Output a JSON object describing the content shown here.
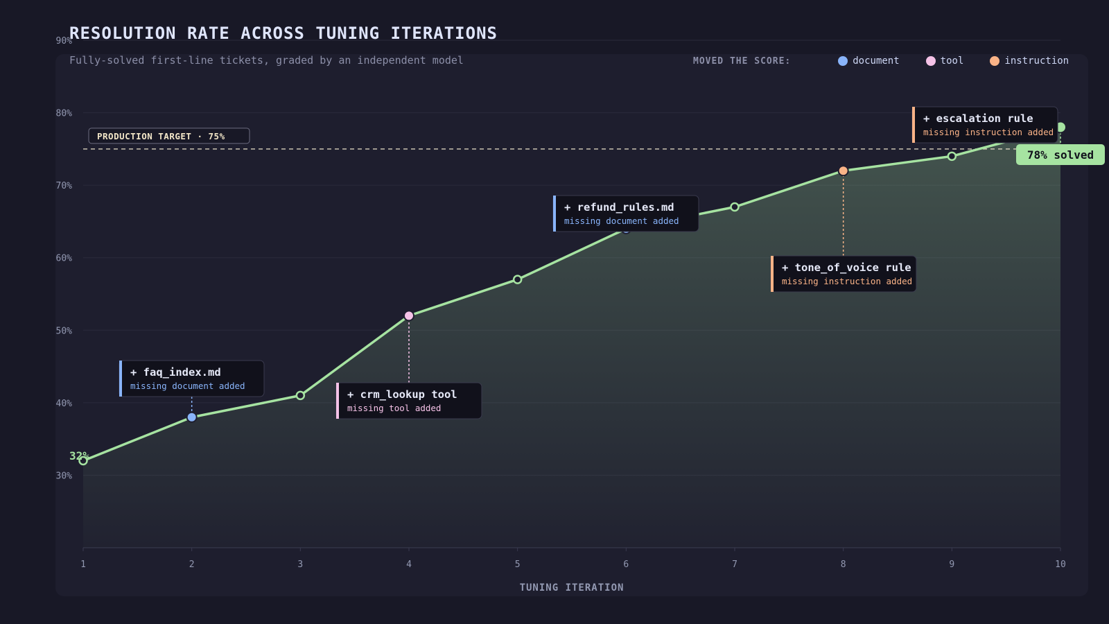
{
  "header": {
    "title": "RESOLUTION RATE ACROSS TUNING ITERATIONS",
    "subtitle": "Fully-solved first-line tickets, graded by an independent model"
  },
  "legend": {
    "title": "MOVED THE SCORE:",
    "items": [
      {
        "label": "document",
        "color": "#89b4fa"
      },
      {
        "label": "tool",
        "color": "#f5c2e7"
      },
      {
        "label": "instruction",
        "color": "#fab387"
      }
    ]
  },
  "colors": {
    "line": "#a6e3a1",
    "document": "#89b4fa",
    "tool": "#f5c2e7",
    "instruction": "#fab387"
  },
  "chart_data": {
    "type": "line",
    "xlabel": "TUNING ITERATION",
    "ylabel": "",
    "x": [
      1,
      2,
      3,
      4,
      5,
      6,
      7,
      8,
      9,
      10
    ],
    "series": [
      {
        "values": [
          32,
          38,
          41,
          52,
          57,
          64,
          67,
          72,
          74,
          78
        ]
      }
    ],
    "ylim": [
      20,
      90
    ],
    "yticks": [
      30,
      40,
      50,
      60,
      70,
      80,
      90
    ],
    "ytick_labels": [
      "30%",
      "40%",
      "50%",
      "60%",
      "70%",
      "80%",
      "90%"
    ],
    "xtick_labels": [
      "1",
      "2",
      "3",
      "4",
      "5",
      "6",
      "7",
      "8",
      "9",
      "10"
    ],
    "grid": true,
    "area_fill": true,
    "target": {
      "value": 75,
      "label": "PRODUCTION TARGET · 75%"
    },
    "start_label": "32%",
    "end_label": "78% solved",
    "annotations": [
      {
        "x": 2,
        "kind": "document",
        "title": "+ faq_index.md",
        "subtitle": "missing document added"
      },
      {
        "x": 4,
        "kind": "tool",
        "title": "+ crm_lookup tool",
        "subtitle": "missing tool added"
      },
      {
        "x": 6,
        "kind": "document",
        "title": "+ refund_rules.md",
        "subtitle": "missing document added"
      },
      {
        "x": 8,
        "kind": "instruction",
        "title": "+ tone_of_voice rule",
        "subtitle": "missing instruction added"
      },
      {
        "x": 10,
        "kind": "instruction",
        "title": "+ escalation rule",
        "subtitle": "missing instruction added"
      }
    ]
  }
}
